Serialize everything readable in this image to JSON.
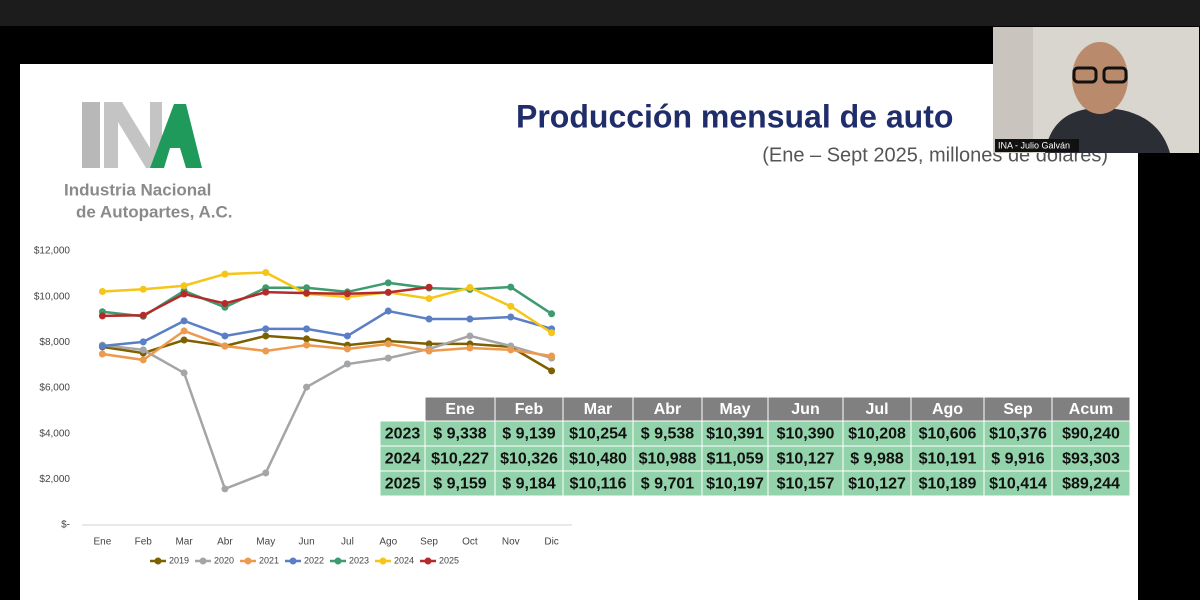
{
  "slide": {
    "title": "Producción mensual de auto",
    "subtitle": "(Ene – Sept 2025, millones de dólares)",
    "logo": {
      "mark": "INA",
      "line1": "Industria Nacional",
      "line2": "de Autopartes, A.C."
    }
  },
  "video": {
    "participant": "INA - Julio Galván"
  },
  "chart_data": {
    "type": "line",
    "categories": [
      "Ene",
      "Feb",
      "Mar",
      "Abr",
      "May",
      "Jun",
      "Jul",
      "Ago",
      "Sep",
      "Oct",
      "Nov",
      "Dic"
    ],
    "ylim": [
      0,
      12000
    ],
    "yticks": [
      {
        "value": 0,
        "label": "$-"
      },
      {
        "value": 2000,
        "label": "$2,000"
      },
      {
        "value": 4000,
        "label": "$4,000"
      },
      {
        "value": 6000,
        "label": "$6,000"
      },
      {
        "value": 8000,
        "label": "$8,000"
      },
      {
        "value": 10000,
        "label": "$10,000"
      },
      {
        "value": 12000,
        "label": "$12,000"
      }
    ],
    "grid": false,
    "legend": "bottom",
    "series": [
      {
        "name": "2019",
        "color": "#7f6000",
        "values": [
          7800,
          7530,
          8100,
          7840,
          8280,
          8150,
          7880,
          8060,
          7930,
          7930,
          7800,
          6750
        ]
      },
      {
        "name": "2020",
        "color": "#a5a5a5",
        "values": [
          7880,
          7670,
          6660,
          1580,
          2280,
          6040,
          7050,
          7310,
          7710,
          8280,
          7840,
          7310
        ]
      },
      {
        "name": "2021",
        "color": "#ed9a4f",
        "values": [
          7490,
          7230,
          8500,
          7840,
          7620,
          7880,
          7710,
          7930,
          7620,
          7750,
          7670,
          7400
        ]
      },
      {
        "name": "2022",
        "color": "#5b7fc4",
        "values": [
          7840,
          8020,
          8940,
          8280,
          8590,
          8590,
          8280,
          9370,
          9020,
          9020,
          9110,
          8590
        ]
      },
      {
        "name": "2023",
        "color": "#3c9b6f",
        "values": [
          9338,
          9139,
          10254,
          9538,
          10391,
          10390,
          10208,
          10606,
          10376,
          10320,
          10420,
          9250
        ]
      },
      {
        "name": "2024",
        "color": "#f5c518",
        "values": [
          10227,
          10326,
          10480,
          10988,
          11059,
          10127,
          9988,
          10191,
          9916,
          10400,
          9580,
          8420
        ]
      },
      {
        "name": "2025",
        "color": "#b52a2a",
        "values": [
          9159,
          9184,
          10116,
          9701,
          10197,
          10157,
          10127,
          10189,
          10414,
          null,
          null,
          null
        ]
      }
    ]
  },
  "table": {
    "columns": [
      "Ene",
      "Feb",
      "Mar",
      "Abr",
      "May",
      "Jun",
      "Jul",
      "Ago",
      "Sep",
      "Acum"
    ],
    "rows": [
      [
        "2023",
        "$ 9,338",
        "$ 9,139",
        "$10,254",
        "$ 9,538",
        "$10,391",
        "$10,390",
        "$10,208",
        "$10,606",
        "$10,376",
        "$90,240"
      ],
      [
        "2024",
        "$10,227",
        "$10,326",
        "$10,480",
        "$10,988",
        "$11,059",
        "$10,127",
        "$ 9,988",
        "$10,191",
        "$ 9,916",
        "$93,303"
      ],
      [
        "2025",
        "$ 9,159",
        "$ 9,184",
        "$10,116",
        "$ 9,701",
        "$10,197",
        "$10,157",
        "$10,127",
        "$10,189",
        "$10,414",
        "$89,244"
      ]
    ]
  }
}
